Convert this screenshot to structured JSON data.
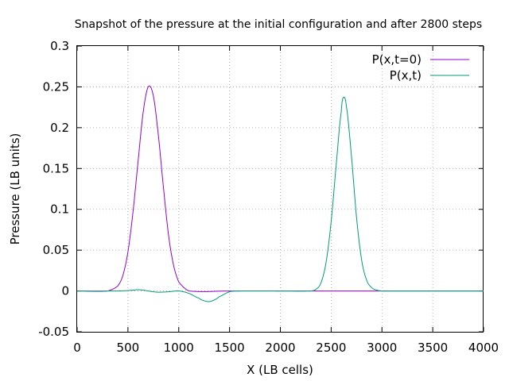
{
  "chart_data": {
    "type": "line",
    "title": "Snapshot of the pressure at the initial configuration and after 2800 steps",
    "xlabel": "X (LB cells)",
    "ylabel": "Pressure (LB units)",
    "xlim": [
      0,
      4000
    ],
    "ylim": [
      -0.05,
      0.3
    ],
    "xticks": [
      "0",
      "500",
      "1000",
      "1500",
      "2000",
      "2500",
      "3000",
      "3500",
      "4000"
    ],
    "yticks": [
      "-0.05",
      "0",
      "0.05",
      "0.1",
      "0.15",
      "0.2",
      "0.25",
      "0.3"
    ],
    "grid": true,
    "legend_position": "top-right",
    "series": [
      {
        "name": "P(x,t=0)",
        "color": "#9400d3",
        "x": [
          0,
          300,
          400,
          450,
          500,
          550,
          600,
          650,
          700,
          750,
          800,
          850,
          900,
          950,
          1000,
          1100,
          1500,
          2000,
          2500,
          3000,
          3500,
          4000
        ],
        "y": [
          0,
          0.0,
          0.006,
          0.019,
          0.048,
          0.097,
          0.159,
          0.219,
          0.25,
          0.239,
          0.19,
          0.126,
          0.068,
          0.031,
          0.011,
          0.0,
          0.0,
          0.0,
          0.0,
          0.0,
          0.0,
          0.0
        ]
      },
      {
        "name": "P(x,t)",
        "color": "#009e73",
        "x": [
          0,
          400,
          500,
          550,
          600,
          650,
          700,
          750,
          800,
          900,
          1000,
          1100,
          1200,
          1250,
          1300,
          1350,
          1400,
          1500,
          1600,
          2000,
          2300,
          2350,
          2400,
          2450,
          2500,
          2550,
          2600,
          2620,
          2650,
          2700,
          2750,
          2800,
          2850,
          2900,
          2950,
          3000,
          3500,
          4000
        ],
        "y": [
          0,
          0.0,
          0.0005,
          0.001,
          0.0015,
          0.001,
          0.0,
          -0.001,
          -0.0015,
          -0.001,
          0.0,
          -0.003,
          -0.009,
          -0.012,
          -0.013,
          -0.011,
          -0.007,
          -0.001,
          0.0,
          0.0,
          0.0,
          0.002,
          0.01,
          0.035,
          0.085,
          0.155,
          0.22,
          0.237,
          0.226,
          0.165,
          0.09,
          0.038,
          0.013,
          0.004,
          0.001,
          0.0,
          0.0,
          0.0
        ]
      }
    ]
  }
}
